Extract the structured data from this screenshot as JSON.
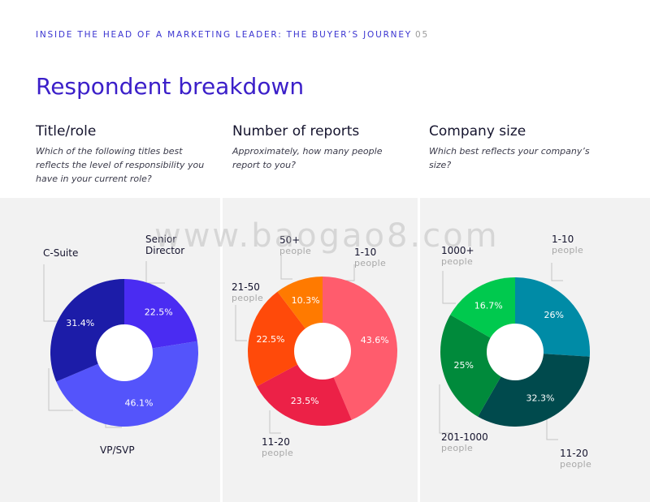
{
  "header": {
    "text": "INSIDE THE HEAD OF A MARKETING LEADER: THE BUYER’S JOURNEY",
    "page": "05"
  },
  "page_title": "Respondent breakdown",
  "watermark": "www.baogao8.com",
  "columns": [
    {
      "title": "Title/role",
      "question": "Which of the following titles best reflects the level of responsibility you have in your current role?"
    },
    {
      "title": "Number of reports",
      "question": "Approximately, how many people report to you?"
    },
    {
      "title": "Company size",
      "question": "Which best reflects your company’s size?"
    }
  ],
  "chart_data": [
    {
      "type": "pie",
      "donut": true,
      "slices": [
        {
          "label": "Senior Director",
          "sublabel": "",
          "value": 22.5,
          "display": "22.5%",
          "color": "#4a2cf2"
        },
        {
          "label": "VP/SVP",
          "sublabel": "",
          "value": 46.1,
          "display": "46.1%",
          "color": "#5454fb"
        },
        {
          "label": "C-Suite",
          "sublabel": "",
          "value": 31.4,
          "display": "31.4%",
          "color": "#1c1ca8"
        }
      ]
    },
    {
      "type": "pie",
      "donut": true,
      "slices": [
        {
          "label": "1-10",
          "sublabel": "people",
          "value": 43.6,
          "display": "43.6%",
          "color": "#ff5c6d"
        },
        {
          "label": "11-20",
          "sublabel": "people",
          "value": 23.5,
          "display": "23.5%",
          "color": "#ec2147"
        },
        {
          "label": "21-50",
          "sublabel": "people",
          "value": 22.5,
          "display": "22.5%",
          "color": "#ff4a0a"
        },
        {
          "label": "50+",
          "sublabel": "people",
          "value": 10.3,
          "display": "10.3%",
          "color": "#ff7a00"
        }
      ]
    },
    {
      "type": "pie",
      "donut": true,
      "slices": [
        {
          "label": "1-10",
          "sublabel": "people",
          "value": 26,
          "display": "26%",
          "color": "#008ba6"
        },
        {
          "label": "11-20",
          "sublabel": "people",
          "value": 32.3,
          "display": "32.3%",
          "color": "#004a4d"
        },
        {
          "label": "201-1000",
          "sublabel": "people",
          "value": 25,
          "display": "25%",
          "color": "#008a3b"
        },
        {
          "label": "1000+",
          "sublabel": "people",
          "value": 16.7,
          "display": "16.7%",
          "color": "#00c94e"
        }
      ]
    }
  ]
}
